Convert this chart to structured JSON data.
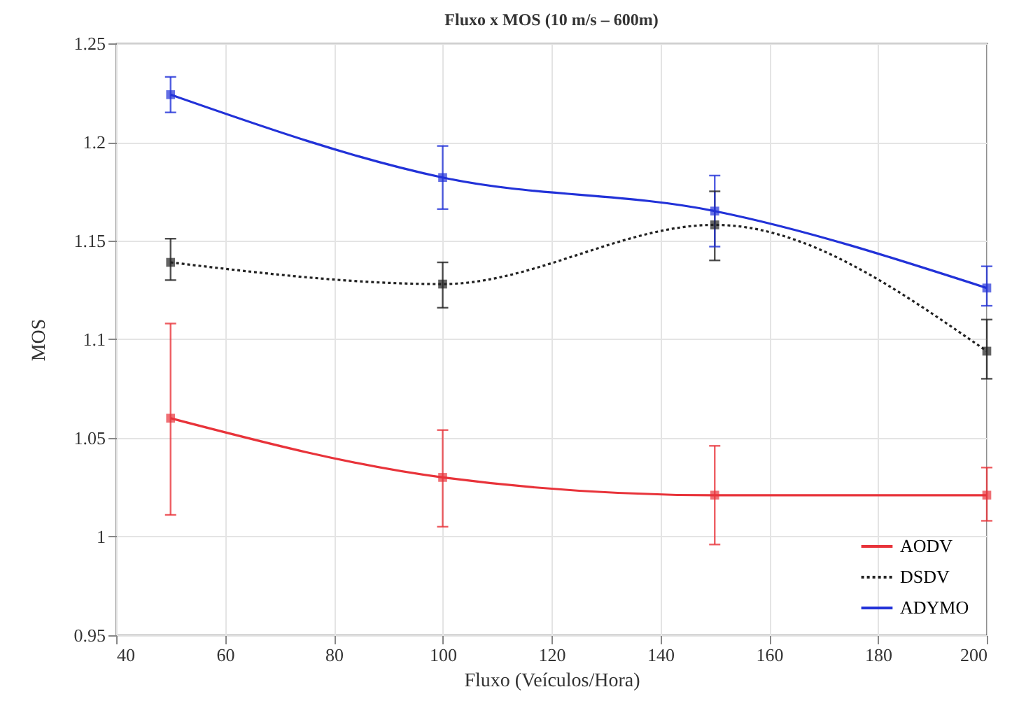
{
  "chart_data": {
    "type": "line",
    "title": "Fluxo x MOS (10 m/s – 600m)",
    "xlabel": "Fluxo (Veículos/Hora)",
    "ylabel": "MOS",
    "x": [
      50,
      100,
      150,
      200
    ],
    "series": [
      {
        "name": "AODV",
        "color": "#e8333a",
        "line_style": "solid",
        "values": [
          1.06,
          1.03,
          1.021,
          1.021
        ],
        "errors": [
          [
            1.011,
            1.108
          ],
          [
            1.005,
            1.054
          ],
          [
            0.996,
            1.046
          ],
          [
            1.008,
            1.035
          ]
        ]
      },
      {
        "name": "DSDV",
        "color": "#222222",
        "line_style": "dotted",
        "values": [
          1.139,
          1.128,
          1.158,
          1.094
        ],
        "errors": [
          [
            1.13,
            1.151
          ],
          [
            1.116,
            1.139
          ],
          [
            1.14,
            1.175
          ],
          [
            1.08,
            1.11
          ]
        ]
      },
      {
        "name": "ADYMO",
        "color": "#2232d8",
        "line_style": "solid",
        "values": [
          1.224,
          1.182,
          1.165,
          1.126
        ],
        "errors": [
          [
            1.215,
            1.233
          ],
          [
            1.166,
            1.198
          ],
          [
            1.147,
            1.183
          ],
          [
            1.117,
            1.137
          ]
        ]
      }
    ],
    "xlim": [
      40,
      200
    ],
    "xticks": [
      40,
      60,
      80,
      100,
      120,
      140,
      160,
      180,
      200
    ],
    "ylim": [
      0.95,
      1.25
    ],
    "yticks": [
      0.95,
      1,
      1.05,
      1.1,
      1.15,
      1.2,
      1.25
    ],
    "grid": true,
    "legend": "bottom right",
    "marker": "square"
  }
}
